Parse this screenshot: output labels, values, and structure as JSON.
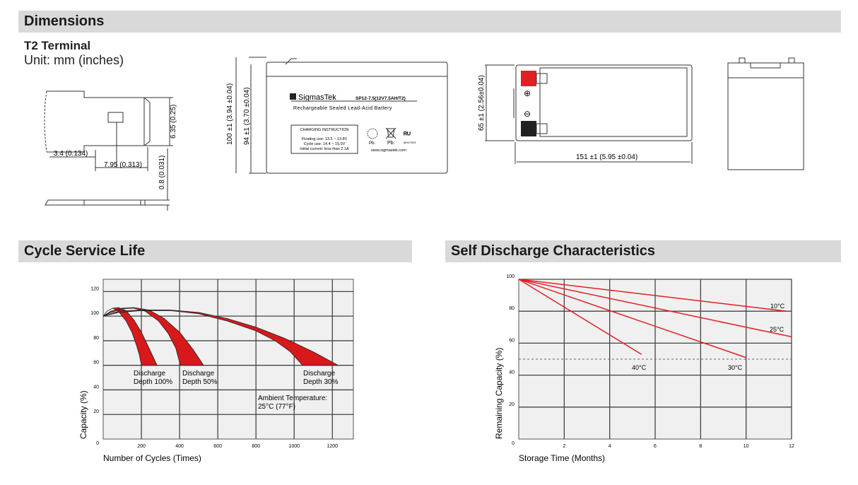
{
  "dimensions": {
    "header": "Dimensions",
    "terminal_title": "T2 Terminal",
    "unit": "Unit: mm (inches)",
    "terminal_dims": {
      "height": "6.35 (0.25)",
      "offset": "3.4 (0.134)",
      "width": "7.95 (0.313)",
      "thickness": "0.8 (0.031)"
    },
    "front_view": {
      "total_height": "100 ±1 (3.94 ±0.04)",
      "case_height": "94 ±1 (3.70 ±0.04)",
      "brand": "SigmasTek",
      "model": "SP12-7.5(12V7.5AH/T2)",
      "subtitle": "Rechargeable Sealed Lead-Acid Battery",
      "charging_title": "CHARGING INSTRUCTION",
      "charging_lines": [
        "Floating use: 13.5 ~ 13.8V",
        "Cycle use: 14.4 ~ 15.0V",
        "Initial current: less than 2.1A"
      ],
      "pb1": "Pb.",
      "pb2": "Pb.",
      "ul_code": "MH47929",
      "website": "www.sigmastek.com"
    },
    "top_view": {
      "width_dim": "65 ±1 (2.56±0.04)",
      "length_dim": "151 ±1 (5.95 ±0.04)",
      "positive_color": "#e31e24",
      "negative_color": "#231f20"
    }
  },
  "cycle_life": {
    "header": "Cycle Service Life",
    "annotation": [
      "Ambient Temperature:",
      "25°C (77°F)"
    ]
  },
  "self_discharge": {
    "header": "Self Discharge Characteristics"
  },
  "chart_data": [
    {
      "type": "area",
      "title": "Cycle Service Life",
      "xlabel": "Number of Cycles (Times)",
      "ylabel": "Capacity (%)",
      "xlim": [
        0,
        1310
      ],
      "ylim": [
        0,
        130
      ],
      "xticks": [
        0,
        200,
        400,
        600,
        800,
        1000,
        1200
      ],
      "yticks": [
        0,
        20,
        40,
        60,
        80,
        100,
        120
      ],
      "grid": true,
      "fill_color": "#d7191c",
      "series": [
        {
          "name": "Discharge Depth 100%",
          "label": [
            "Discharge",
            "Depth 100%"
          ],
          "outer": [
            [
              0,
              100
            ],
            [
              20,
              104
            ],
            [
              50,
              106.5
            ],
            [
              80,
              107
            ],
            [
              120,
              104.5
            ],
            [
              160,
              97
            ],
            [
              200,
              87
            ],
            [
              240,
              74
            ],
            [
              282,
              60
            ]
          ],
          "inner": [
            [
              0,
              100
            ],
            [
              20,
              104
            ],
            [
              50,
              106.5
            ],
            [
              80,
              104
            ],
            [
              120,
              96
            ],
            [
              150,
              87
            ],
            [
              175,
              76
            ],
            [
              190,
              68
            ],
            [
              200,
              60
            ]
          ]
        },
        {
          "name": "Discharge Depth 50%",
          "label": [
            "Discharge",
            "Depth 50%"
          ],
          "outer": [
            [
              0,
              100
            ],
            [
              40,
              104
            ],
            [
              100,
              106.5
            ],
            [
              160,
              107
            ],
            [
              240,
              105
            ],
            [
              320,
              98
            ],
            [
              400,
              87
            ],
            [
              470,
              73
            ],
            [
              526,
              60
            ]
          ],
          "inner": [
            [
              0,
              100
            ],
            [
              40,
              103
            ],
            [
              100,
              106
            ],
            [
              160,
              106.5
            ],
            [
              220,
              104
            ],
            [
              290,
              96
            ],
            [
              340,
              86
            ],
            [
              380,
              74
            ],
            [
              404,
              60
            ]
          ]
        },
        {
          "name": "Discharge Depth 30%",
          "label": [
            "Discharge",
            "Depth 30%"
          ],
          "outer": [
            [
              0,
              100
            ],
            [
              80,
              104
            ],
            [
              200,
              105
            ],
            [
              350,
              105
            ],
            [
              500,
              103
            ],
            [
              650,
              98
            ],
            [
              800,
              91
            ],
            [
              950,
              82
            ],
            [
              1100,
              71
            ],
            [
              1230,
              60
            ]
          ],
          "inner": [
            [
              0,
              100
            ],
            [
              80,
              103
            ],
            [
              200,
              104.5
            ],
            [
              350,
              104.5
            ],
            [
              500,
              102
            ],
            [
              650,
              96
            ],
            [
              800,
              88
            ],
            [
              900,
              80
            ],
            [
              980,
              71
            ],
            [
              1044,
              60
            ]
          ]
        }
      ]
    },
    {
      "type": "line",
      "title": "Self Discharge Characteristics",
      "xlabel": "Storage Time (Months)",
      "ylabel": "Remaining Capacity (%)",
      "xlim": [
        0,
        12
      ],
      "ylim": [
        0,
        100
      ],
      "xticks": [
        0,
        2,
        4,
        6,
        8,
        10,
        12
      ],
      "yticks": [
        0,
        20,
        40,
        60,
        80,
        100
      ],
      "grid": true,
      "reference_line": {
        "y": 50,
        "style": "dashed"
      },
      "line_color": "#e31e24",
      "series": [
        {
          "name": "10°C",
          "x": [
            0,
            11.8
          ],
          "y": [
            100,
            80
          ]
        },
        {
          "name": "25°C",
          "x": [
            0,
            12
          ],
          "y": [
            100,
            64
          ]
        },
        {
          "name": "30°C",
          "x": [
            0,
            10
          ],
          "y": [
            100,
            51
          ]
        },
        {
          "name": "40°C",
          "x": [
            0,
            5.4
          ],
          "y": [
            100,
            53
          ]
        }
      ]
    }
  ]
}
